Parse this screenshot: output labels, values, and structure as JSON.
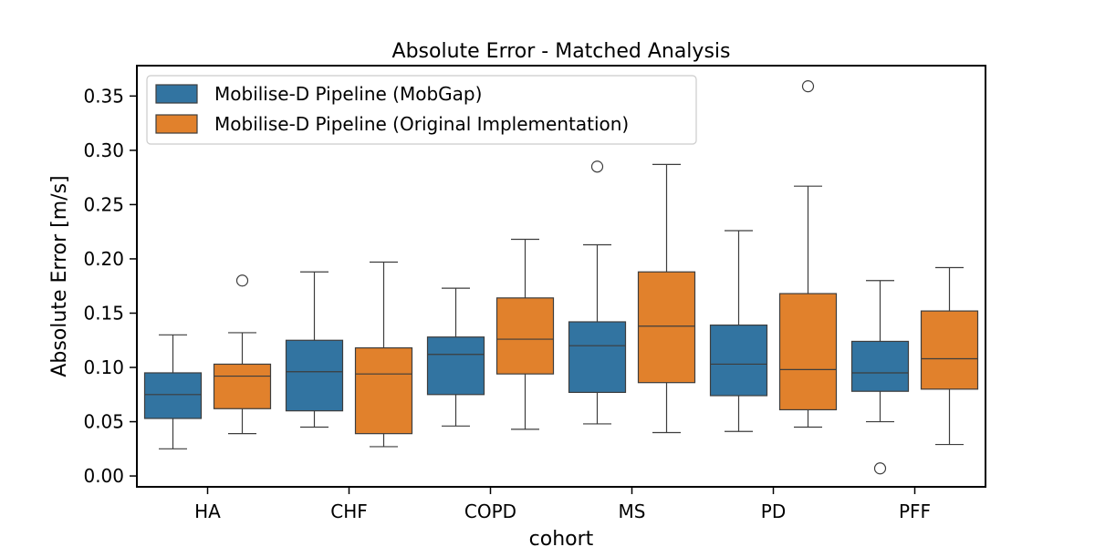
{
  "chart_data": {
    "type": "box",
    "title": "Absolute Error - Matched Analysis",
    "xlabel": "cohort",
    "ylabel": "Absolute Error [m/s]",
    "ylim": [
      -0.01,
      0.378
    ],
    "yticks": [
      0.0,
      0.05,
      0.1,
      0.15,
      0.2,
      0.25,
      0.3,
      0.35
    ],
    "ytick_labels": [
      "0.00",
      "0.05",
      "0.10",
      "0.15",
      "0.20",
      "0.25",
      "0.30",
      "0.35"
    ],
    "categories": [
      "HA",
      "CHF",
      "COPD",
      "MS",
      "PD",
      "PFF"
    ],
    "legend_position": "upper-left",
    "grid": false,
    "series": [
      {
        "name": "Mobilise-D Pipeline (MobGap)",
        "color": "#3274a1",
        "boxes": [
          {
            "whislo": 0.025,
            "q1": 0.053,
            "med": 0.075,
            "q3": 0.095,
            "whishi": 0.13,
            "fliers": []
          },
          {
            "whislo": 0.045,
            "q1": 0.06,
            "med": 0.096,
            "q3": 0.125,
            "whishi": 0.188,
            "fliers": []
          },
          {
            "whislo": 0.046,
            "q1": 0.075,
            "med": 0.112,
            "q3": 0.128,
            "whishi": 0.173,
            "fliers": []
          },
          {
            "whislo": 0.048,
            "q1": 0.077,
            "med": 0.12,
            "q3": 0.142,
            "whishi": 0.213,
            "fliers": [
              0.285
            ]
          },
          {
            "whislo": 0.041,
            "q1": 0.074,
            "med": 0.103,
            "q3": 0.139,
            "whishi": 0.226,
            "fliers": []
          },
          {
            "whislo": 0.05,
            "q1": 0.078,
            "med": 0.095,
            "q3": 0.124,
            "whishi": 0.18,
            "fliers": [
              0.007
            ]
          }
        ]
      },
      {
        "name": "Mobilise-D Pipeline (Original Implementation)",
        "color": "#e1812c",
        "boxes": [
          {
            "whislo": 0.039,
            "q1": 0.062,
            "med": 0.092,
            "q3": 0.103,
            "whishi": 0.132,
            "fliers": [
              0.18
            ]
          },
          {
            "whislo": 0.027,
            "q1": 0.039,
            "med": 0.094,
            "q3": 0.118,
            "whishi": 0.197,
            "fliers": []
          },
          {
            "whislo": 0.043,
            "q1": 0.094,
            "med": 0.126,
            "q3": 0.164,
            "whishi": 0.218,
            "fliers": []
          },
          {
            "whislo": 0.04,
            "q1": 0.086,
            "med": 0.138,
            "q3": 0.188,
            "whishi": 0.287,
            "fliers": []
          },
          {
            "whislo": 0.045,
            "q1": 0.061,
            "med": 0.098,
            "q3": 0.168,
            "whishi": 0.267,
            "fliers": [
              0.359
            ]
          },
          {
            "whislo": 0.029,
            "q1": 0.08,
            "med": 0.108,
            "q3": 0.152,
            "whishi": 0.192,
            "fliers": []
          }
        ]
      }
    ]
  }
}
